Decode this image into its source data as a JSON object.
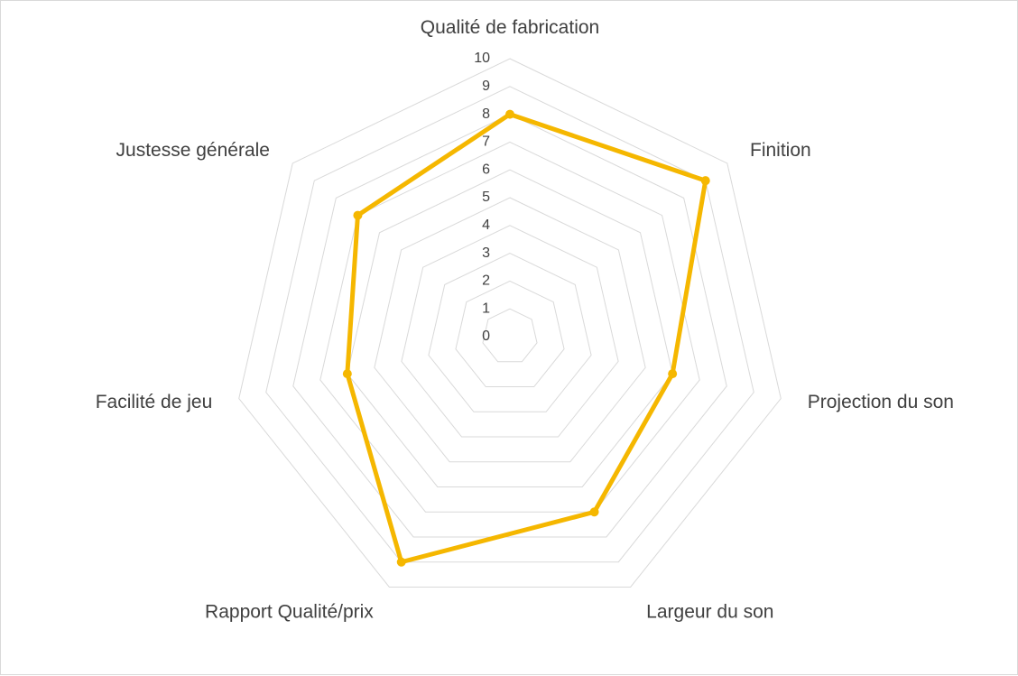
{
  "chart_data": {
    "type": "radar",
    "categories": [
      "Qualité de fabrication",
      "Finition",
      "Projection du son",
      "Largeur du son",
      "Rapport Qualité/prix",
      "Facilité de jeu",
      "Justesse générale"
    ],
    "series": [
      {
        "values": [
          8,
          9,
          6,
          7,
          9,
          6,
          7
        ]
      }
    ],
    "rlim": [
      0,
      10
    ],
    "ticks": [
      "0",
      "1",
      "2",
      "3",
      "4",
      "5",
      "6",
      "7",
      "8",
      "9",
      "10"
    ],
    "grid": true,
    "legend": "none",
    "colors": {
      "series": "#f5b700",
      "grid": "#d9d9d9",
      "text": "#404040"
    }
  }
}
